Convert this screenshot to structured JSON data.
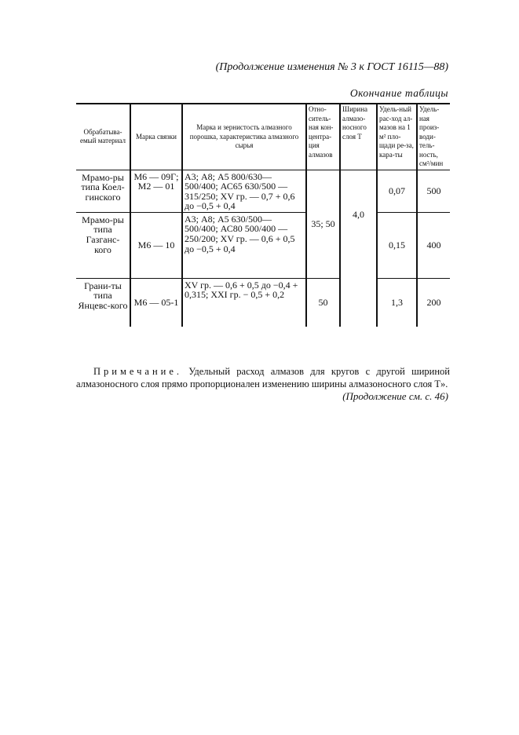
{
  "header": "(Продолжение изменения № 3 к ГОСТ 16115—88)",
  "caption": "Окончание таблицы",
  "table": {
    "columns": [
      "Обрабатыва-емый материал",
      "Марка связки",
      "Марка и зернистость алмазного порошка, характеристика алмазного сырья",
      "Отно-ситель-ная кон-центра-ция алмазов",
      "Ширина алмазо-носного слоя T",
      "Удель-ный рас-ход ал-мазов на 1 м² пло-щади ре-за, кара-ты",
      "Удель-ная произ-води-тель-ность, см²/мин"
    ],
    "rows": [
      {
        "material": "Мрамо-ры типа Коел-гинского",
        "bond": "М6 — 09Г; М2 — 01",
        "powder": "А3; А8; А5 800/630—500/400; АС65 630/500 — 315/250; XV гр. — 0,7 + 0,6 до −0,5 + 0,4",
        "concentration": "35; 50",
        "width": "4,0",
        "consumption": "0,07",
        "productivity": "500"
      },
      {
        "material": "Мрамо-ры типа Газганс-кого",
        "bond": "М6 — 10",
        "powder": "А3; А8; А5 630/500—500/400; АС80 500/400 — 250/200; XV гр. — 0,6 + 0,5 до −0,5 + 0,4",
        "consumption": "0,15",
        "productivity": "400"
      },
      {
        "material": "Грани-ты типа Янцевс-кого",
        "bond": "М6 — 05-1",
        "powder": "XV гр. — 0,6 + 0,5 до −0,4 + 0,315; XXI гр. − 0,5 + 0,2",
        "concentration": "50",
        "consumption": "1,3",
        "productivity": "200"
      }
    ]
  },
  "note": {
    "label": "Примечание.",
    "text": " Удельный расход алмазов для кругов с другой шириной алмазоносного слоя прямо пропорционален изменению ширины алмазоносного слоя T»."
  },
  "continuation": "(Продолжение см. с. 46)"
}
